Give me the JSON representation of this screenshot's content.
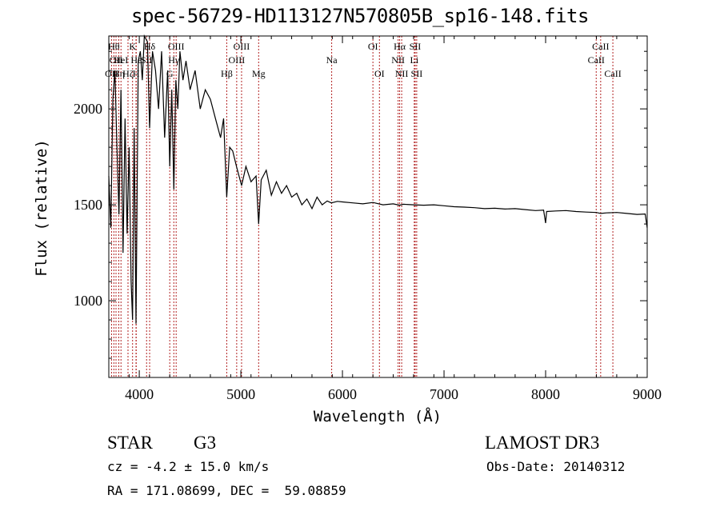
{
  "chart_data": {
    "type": "line",
    "title": "spec-56729-HD113127N570805B_sp16-148.fits",
    "xlabel": "Wavelength (Å)",
    "ylabel": "Flux (relative)",
    "xlim": [
      3700,
      9000
    ],
    "ylim": [
      600,
      2380
    ],
    "x_ticks": [
      4000,
      5000,
      6000,
      7000,
      8000,
      9000
    ],
    "y_ticks": [
      1000,
      1500,
      2000
    ],
    "grid": false,
    "series": [
      {
        "x": [
          3700,
          3720,
          3740,
          3760,
          3780,
          3800,
          3820,
          3840,
          3860,
          3880,
          3900,
          3920,
          3934,
          3950,
          3968,
          3990,
          4010,
          4030,
          4050,
          4080,
          4102,
          4130,
          4160,
          4190,
          4220,
          4250,
          4280,
          4300,
          4320,
          4340,
          4360,
          4380,
          4400,
          4430,
          4460,
          4500,
          4550,
          4600,
          4650,
          4700,
          4750,
          4800,
          4830,
          4861,
          4890,
          4920,
          4957,
          5007,
          5050,
          5100,
          5150,
          5175,
          5200,
          5250,
          5300,
          5350,
          5400,
          5450,
          5500,
          5550,
          5600,
          5650,
          5700,
          5750,
          5800,
          5850,
          5890,
          5950,
          6000,
          6100,
          6200,
          6300,
          6400,
          6500,
          6563,
          6600,
          6700,
          6800,
          6900,
          7000,
          7100,
          7200,
          7300,
          7400,
          7500,
          7600,
          7700,
          7800,
          7900,
          7980,
          8000,
          8010,
          8100,
          8200,
          8300,
          8400,
          8500,
          8542,
          8600,
          8700,
          8800,
          8900,
          8980,
          9000
        ],
        "y": [
          1650,
          1380,
          2050,
          2200,
          1800,
          1450,
          2100,
          1250,
          1950,
          1350,
          1800,
          1100,
          900,
          1900,
          880,
          2250,
          2300,
          2150,
          2380,
          2350,
          1900,
          2300,
          2200,
          2000,
          2300,
          1850,
          2200,
          1700,
          2100,
          1580,
          2150,
          2000,
          2300,
          2150,
          2250,
          2100,
          2200,
          2000,
          2100,
          2050,
          1950,
          1850,
          1950,
          1540,
          1800,
          1780,
          1700,
          1600,
          1700,
          1620,
          1650,
          1400,
          1630,
          1680,
          1550,
          1620,
          1560,
          1600,
          1540,
          1560,
          1500,
          1530,
          1480,
          1540,
          1500,
          1520,
          1510,
          1518,
          1515,
          1510,
          1505,
          1512,
          1500,
          1505,
          1498,
          1503,
          1500,
          1498,
          1500,
          1495,
          1490,
          1488,
          1485,
          1480,
          1482,
          1478,
          1480,
          1475,
          1470,
          1472,
          1405,
          1465,
          1468,
          1470,
          1465,
          1462,
          1460,
          1455,
          1458,
          1460,
          1455,
          1450,
          1452,
          1380
        ]
      }
    ],
    "lines": [
      {
        "x": 3727,
        "label": "OII",
        "row": 3
      },
      {
        "x": 3750,
        "label": "Hθ",
        "row": 1
      },
      {
        "x": 3771,
        "label": "OII",
        "row": 2
      },
      {
        "x": 3798,
        "label": "Hη",
        "row": 3
      },
      {
        "x": 3820,
        "label": "HeI",
        "row": 2
      },
      {
        "x": 3889,
        "label": "Hζ",
        "row": 3
      },
      {
        "x": 3934,
        "label": "K",
        "row": 1
      },
      {
        "x": 3968,
        "label": "H",
        "row": 3
      },
      {
        "x": 3970,
        "label": "Hε",
        "row": 2
      },
      {
        "x": 4072,
        "label": "SII",
        "row": 2
      },
      {
        "x": 4102,
        "label": "Hδ",
        "row": 1
      },
      {
        "x": 4300,
        "label": "G",
        "row": 3
      },
      {
        "x": 4340,
        "label": "Hγ",
        "row": 2
      },
      {
        "x": 4363,
        "label": "OIII",
        "row": 1
      },
      {
        "x": 4861,
        "label": "Hβ",
        "row": 3
      },
      {
        "x": 4959,
        "label": "OIII",
        "row": 2
      },
      {
        "x": 5007,
        "label": "OIII",
        "row": 1
      },
      {
        "x": 5175,
        "label": "Mg",
        "row": 3
      },
      {
        "x": 5894,
        "label": "Na",
        "row": 2
      },
      {
        "x": 6300,
        "label": "OI",
        "row": 1
      },
      {
        "x": 6364,
        "label": "OI",
        "row": 3
      },
      {
        "x": 6548,
        "label": "NII",
        "row": 2
      },
      {
        "x": 6563,
        "label": "Hα",
        "row": 1
      },
      {
        "x": 6583,
        "label": "NII",
        "row": 3
      },
      {
        "x": 6707,
        "label": "Li",
        "row": 2
      },
      {
        "x": 6716,
        "label": "SII",
        "row": 1
      },
      {
        "x": 6731,
        "label": "SII",
        "row": 3
      },
      {
        "x": 8498,
        "label": "CaII",
        "row": 2
      },
      {
        "x": 8542,
        "label": "CaII",
        "row": 1
      },
      {
        "x": 8662,
        "label": "CaII",
        "row": 3
      }
    ]
  },
  "info": {
    "class": "STAR",
    "subclass": "G3",
    "survey": "LAMOST DR3",
    "cz": "cz = -4.2 ± 15.0 km/s",
    "obsdate": "Obs-Date: 20140312",
    "coords": "RA = 171.08699, DEC =  59.08859"
  },
  "colors": {
    "line_markers": "#b22222",
    "spectrum": "#000000"
  }
}
